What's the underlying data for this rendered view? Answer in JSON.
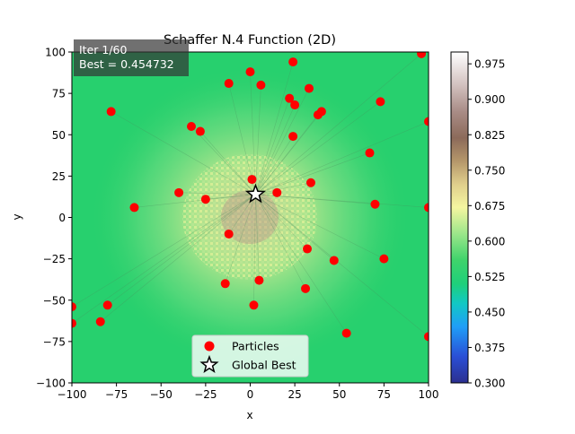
{
  "chart_data": {
    "type": "scatter",
    "title": "Schaffer N.4 Function (2D)",
    "xlabel": "x",
    "ylabel": "y",
    "xlim": [
      -100,
      100
    ],
    "ylim": [
      -100,
      100
    ],
    "x_ticks": [
      -100,
      -75,
      -50,
      -25,
      0,
      25,
      50,
      75,
      100
    ],
    "y_ticks": [
      -100,
      -75,
      -50,
      -25,
      0,
      25,
      50,
      75,
      100
    ],
    "x_tick_labels": [
      "−100",
      "−75",
      "−50",
      "−25",
      "0",
      "25",
      "50",
      "75",
      "100"
    ],
    "y_tick_labels": [
      "−100",
      "−75",
      "−50",
      "−25",
      "0",
      "25",
      "50",
      "75",
      "100"
    ],
    "annotation": {
      "iter_text": "Iter 1/60",
      "best_text": "Best = 0.454732"
    },
    "colorbar": {
      "range": [
        0.3,
        1.0
      ],
      "ticks": [
        0.3,
        0.375,
        0.45,
        0.525,
        0.6,
        0.675,
        0.75,
        0.825,
        0.9,
        0.975
      ],
      "tick_labels": [
        "0.300",
        "0.375",
        "0.450",
        "0.525",
        "0.600",
        "0.675",
        "0.750",
        "0.825",
        "0.900",
        "0.975"
      ],
      "background_value": 0.5
    },
    "legend": {
      "position": "lower center",
      "entries": [
        {
          "label": "Particles",
          "marker": "circle",
          "color": "#ff0000"
        },
        {
          "label": "Global Best",
          "marker": "star",
          "color": "#ffffff"
        }
      ]
    },
    "series": [
      {
        "name": "Particles",
        "color": "#ff0000",
        "points": [
          [
            -12,
            81
          ],
          [
            0,
            88
          ],
          [
            6,
            80
          ],
          [
            24,
            94
          ],
          [
            22,
            72
          ],
          [
            25,
            68
          ],
          [
            33,
            78
          ],
          [
            96,
            99
          ],
          [
            -78,
            64
          ],
          [
            -33,
            55
          ],
          [
            -28,
            52
          ],
          [
            24,
            49
          ],
          [
            38,
            62
          ],
          [
            40,
            64
          ],
          [
            73,
            70
          ],
          [
            100,
            58
          ],
          [
            67,
            39
          ],
          [
            1,
            23
          ],
          [
            34,
            21
          ],
          [
            -40,
            15
          ],
          [
            15,
            15
          ],
          [
            -25,
            11
          ],
          [
            -65,
            6
          ],
          [
            70,
            8
          ],
          [
            100,
            6
          ],
          [
            -12,
            -10
          ],
          [
            32,
            -19
          ],
          [
            47,
            -26
          ],
          [
            75,
            -25
          ],
          [
            -14,
            -40
          ],
          [
            5,
            -38
          ],
          [
            31,
            -43
          ],
          [
            -100,
            -54
          ],
          [
            -80,
            -53
          ],
          [
            2,
            -53
          ],
          [
            -100,
            -64
          ],
          [
            -84,
            -63
          ],
          [
            54,
            -70
          ],
          [
            100,
            -72
          ]
        ]
      },
      {
        "name": "Global Best",
        "color": "#ffffff",
        "points": [
          [
            3,
            14
          ]
        ]
      }
    ]
  }
}
